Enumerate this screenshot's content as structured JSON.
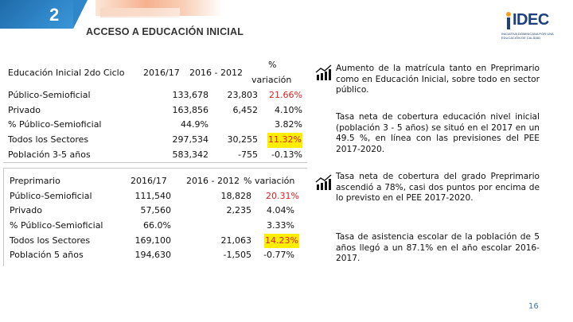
{
  "header": {
    "slide_number": "2",
    "title": "ACCESO A EDUCACIÓN INICIAL",
    "logo_text": "IDEC",
    "logo_subtext": "INICIATIVA DOMINICANA POR UNA EDUCACIÓN DE CALIDAD"
  },
  "inicial": {
    "header": {
      "label": "Educación Inicial 2do Ciclo",
      "col1": "2016/17",
      "col2": "2016 - 2012",
      "col3_line1": "%",
      "col3_line2": "variación"
    },
    "rows": [
      {
        "label": "Público-Semioficial",
        "v1": "133,678",
        "v2": "23,803",
        "v3": "21.66%"
      },
      {
        "label": "Privado",
        "v1": "163,856",
        "v2": "6,452",
        "v3": "4.10%"
      },
      {
        "label": "% Público-Semioficial",
        "v1": "44.9%",
        "v2": "",
        "v3": "3.82%"
      },
      {
        "label": "Todos los Sectores",
        "v1": "297,534",
        "v2": "30,255",
        "v3": "11.32%"
      },
      {
        "label": "Población 3-5 años",
        "v1": "583,342",
        "v2": "-755",
        "v3": "-0.13%"
      }
    ]
  },
  "preprimario": {
    "header": {
      "label": "Preprimario",
      "col1": "2016/17",
      "col2": "2016 - 2012",
      "col3": "% variación"
    },
    "rows": [
      {
        "label": "Público-Semioficial",
        "v1": "111,540",
        "v2": "18,828",
        "v3": "20.31%"
      },
      {
        "label": "Privado",
        "v1": "57,560",
        "v2": "2,235",
        "v3": "4.04%"
      },
      {
        "label": "% Público-Semioficial",
        "v1": "66.0%",
        "v2": "",
        "v3": "3.33%"
      },
      {
        "label": "Todos los Sectores",
        "v1": "169,100",
        "v2": "21,063",
        "v3": "14.23%"
      },
      {
        "label": "Población 5 años",
        "v1": "194,630",
        "v2": "-1,505",
        "v3": "-0.77%"
      }
    ]
  },
  "notes": [
    "Aumento de la matrícula tanto en Preprimario como en Educación Inicial, sobre todo en sector público.",
    "Tasa neta de cobertura educación nivel inicial (población 3 - 5 años) se situó en el 2017 en un 49.5 %, en línea con las previsiones del PEE 2017-2020.",
    "Tasa neta de cobertura del grado Preprimario ascendió a 78%, casi dos puntos por encima de lo previsto en el PEE 2017-2020.",
    "Tasa de asistencia escolar de la población de 5 años llegó a un 87.1% en el año escolar 2016-2017."
  ],
  "icons": [
    "bar-chart-icon",
    "bar-chart-icon"
  ],
  "colors": {
    "accent_blue": "#2f86c8",
    "red_value": "#e02020",
    "highlight": "#ffee00",
    "logo_blue": "#1d3f7a"
  },
  "footer": {
    "page_number": "16"
  }
}
